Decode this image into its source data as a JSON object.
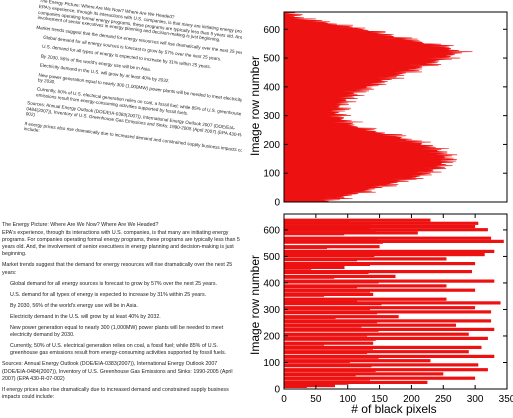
{
  "text_page": {
    "title": "The Energy Picture: Where Are We Now? Where Are We Headed?",
    "paragraphs": [
      "EPA's experience, through its interactions with U.S. companies, is that many are initiating energy programs. For companies operating formal energy programs, these programs are typically less than 5 years old. And, the involvement of senior executives in energy planning and decision-making is just beginning.",
      "Market trends suggest that the demand for energy resources will rise dramatically over the next 25 years:",
      "Global demand for all energy sources is forecast to grow by 57% over the next 25 years.",
      "U.S. demand for all types of energy is expected to increase by 31% within 25 years.",
      "By 2030, 56% of the world's energy use will be in Asia.",
      "Electricity demand in the U.S. will grow by at least 40% by 2032.",
      "New power generation equal to nearly 300 (1,000MW) power plants will be needed to meet electricity demand by 2030.",
      "Currently, 50% of U.S. electrical generation relies on coal, a fossil fuel; while 85% of U.S. greenhouse gas emissions result from energy-consuming activities supported by fossil fuels.",
      "Sources: Annual Energy Outlook (DOE/EIA-0383(2007)), International Energy Outlook 2007 (DOE/EIA-0484(2007)), Inventory of U.S. Greenhouse Gas Emissions and Sinks: 1990-2005 (April 2007) (EPA 430-R-07-002)",
      "If energy prices also rise dramatically due to increased demand and constrained supply business impacts could include:"
    ]
  },
  "chart_data": [
    {
      "type": "bar",
      "orientation": "horizontal",
      "ylabel": "Image row number",
      "xlim": [
        0,
        350
      ],
      "ylim": [
        0,
        660
      ],
      "yticks": [
        0,
        100,
        200,
        300,
        400,
        500,
        600
      ],
      "bar_color": "#ee1111",
      "profile_rows": [
        0,
        30,
        60,
        90,
        120,
        150,
        180,
        205,
        230,
        260,
        300,
        340,
        380,
        410,
        440,
        470,
        500,
        520,
        540,
        560,
        580,
        600,
        620,
        640,
        660
      ],
      "profile_values": [
        60,
        110,
        160,
        210,
        240,
        255,
        240,
        210,
        170,
        110,
        80,
        85,
        110,
        140,
        175,
        215,
        250,
        270,
        250,
        200,
        160,
        120,
        70,
        20,
        0
      ]
    },
    {
      "type": "bar",
      "orientation": "horizontal",
      "xlabel": "# of black pixels",
      "ylabel": "Image row number",
      "xlim": [
        0,
        350
      ],
      "ylim": [
        0,
        660
      ],
      "xticks": [
        0,
        50,
        100,
        150,
        200,
        250,
        300,
        350
      ],
      "yticks": [
        0,
        100,
        200,
        300,
        400,
        500,
        600
      ],
      "bar_color": "#ee1111",
      "text_lines": [
        {
          "row": 630,
          "value": 230
        },
        {
          "row": 618,
          "value": 305
        },
        {
          "row": 606,
          "value": 300
        },
        {
          "row": 594,
          "value": 320
        },
        {
          "row": 582,
          "value": 210
        },
        {
          "row": 562,
          "value": 325
        },
        {
          "row": 550,
          "value": 345
        },
        {
          "row": 530,
          "value": 150
        },
        {
          "row": 512,
          "value": 330
        },
        {
          "row": 500,
          "value": 315
        },
        {
          "row": 484,
          "value": 255
        },
        {
          "row": 466,
          "value": 300
        },
        {
          "row": 452,
          "value": 95
        },
        {
          "row": 436,
          "value": 295
        },
        {
          "row": 418,
          "value": 175
        },
        {
          "row": 400,
          "value": 330
        },
        {
          "row": 382,
          "value": 255
        },
        {
          "row": 366,
          "value": 300
        },
        {
          "row": 350,
          "value": 140
        },
        {
          "row": 332,
          "value": 255
        },
        {
          "row": 318,
          "value": 340
        },
        {
          "row": 300,
          "value": 300
        },
        {
          "row": 284,
          "value": 325
        },
        {
          "row": 266,
          "value": 180
        },
        {
          "row": 250,
          "value": 325
        },
        {
          "row": 234,
          "value": 270
        },
        {
          "row": 218,
          "value": 330
        },
        {
          "row": 200,
          "value": 290
        },
        {
          "row": 184,
          "value": 320
        },
        {
          "row": 166,
          "value": 140
        },
        {
          "row": 150,
          "value": 310
        },
        {
          "row": 134,
          "value": 290
        },
        {
          "row": 116,
          "value": 330
        },
        {
          "row": 100,
          "value": 230
        },
        {
          "row": 84,
          "value": 305
        },
        {
          "row": 66,
          "value": 320
        },
        {
          "row": 50,
          "value": 250
        },
        {
          "row": 34,
          "value": 300
        },
        {
          "row": 18,
          "value": 225
        },
        {
          "row": 6,
          "value": 80
        }
      ]
    }
  ]
}
